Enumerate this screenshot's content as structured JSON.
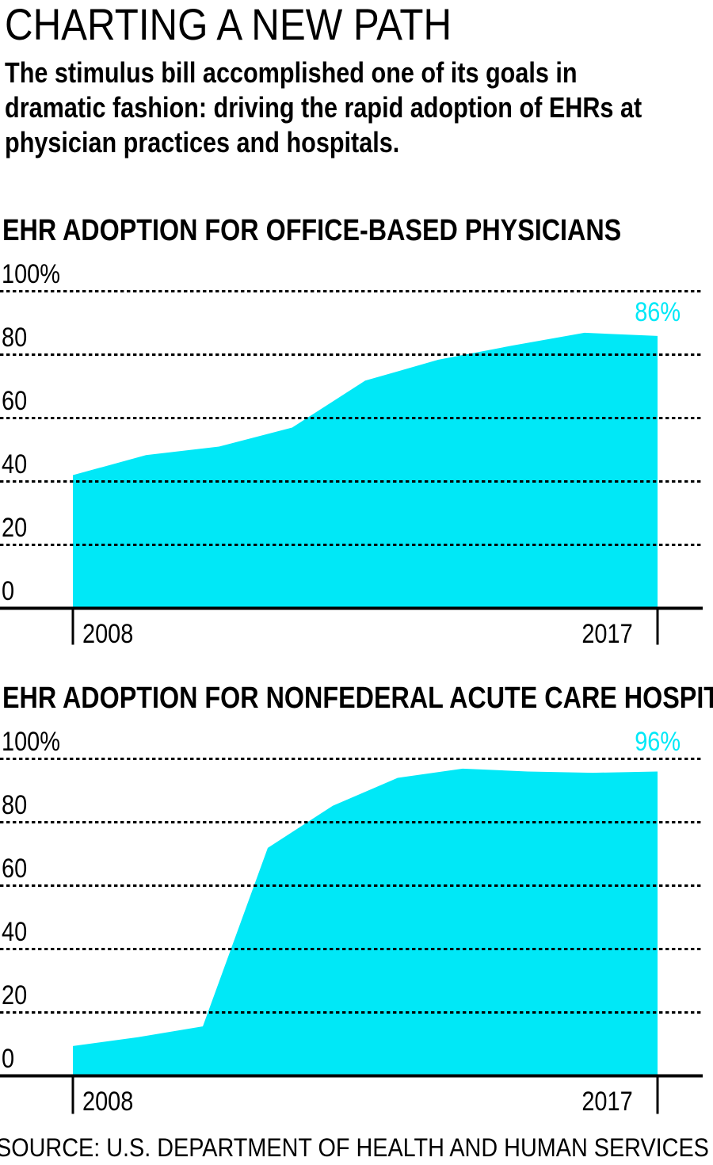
{
  "page": {
    "title": "CHARTING A NEW PATH",
    "subtitle": "The stimulus bill accomplished one of its goals in\ndramatic fashion: driving the rapid adoption of EHRs at\nphysician practices and hospitals.",
    "source": "SOURCE: U.S. DEPARTMENT OF HEALTH AND HUMAN SERVICES"
  },
  "colors": {
    "accent_cyan": "#00e8f7",
    "text": "#000000",
    "gridline": "#000000"
  },
  "chart_data": [
    {
      "id": "physicians",
      "type": "area",
      "title": "EHR ADOPTION FOR OFFICE-BASED PHYSICIANS",
      "x": [
        2008,
        2009,
        2010,
        2011,
        2012,
        2013,
        2014,
        2015,
        2017
      ],
      "values": [
        42.0,
        48.3,
        51.0,
        57.0,
        71.8,
        78.4,
        82.8,
        86.9,
        85.9
      ],
      "end_label": "86%",
      "x_tick_labels": [
        "2008",
        "2017"
      ],
      "y_tick_labels": [
        "100%",
        "80",
        "60",
        "40",
        "20",
        "0"
      ],
      "y_gridline_values": [
        100,
        80,
        60,
        40,
        20
      ],
      "ylim": [
        0,
        100
      ],
      "xlabel": "",
      "ylabel": "",
      "grid": "horizontal-dotted",
      "legend": "none",
      "fill": "#00e8f7"
    },
    {
      "id": "hospitals",
      "type": "area",
      "title": "EHR ADOPTION FOR NONFEDERAL ACUTE CARE HOSPITALS",
      "x": [
        2008,
        2009,
        2010,
        2011,
        2012,
        2013,
        2014,
        2015,
        2016,
        2017
      ],
      "values": [
        9.4,
        12.2,
        15.6,
        71.9,
        85.2,
        94.0,
        96.9,
        96.0,
        95.6,
        96.0
      ],
      "end_label": "96%",
      "x_tick_labels": [
        "2008",
        "2017"
      ],
      "y_tick_labels": [
        "100%",
        "80",
        "60",
        "40",
        "20",
        "0"
      ],
      "y_gridline_values": [
        100,
        80,
        60,
        40,
        20
      ],
      "ylim": [
        0,
        100
      ],
      "xlabel": "",
      "ylabel": "",
      "grid": "horizontal-dotted",
      "legend": "none",
      "fill": "#00e8f7"
    }
  ]
}
